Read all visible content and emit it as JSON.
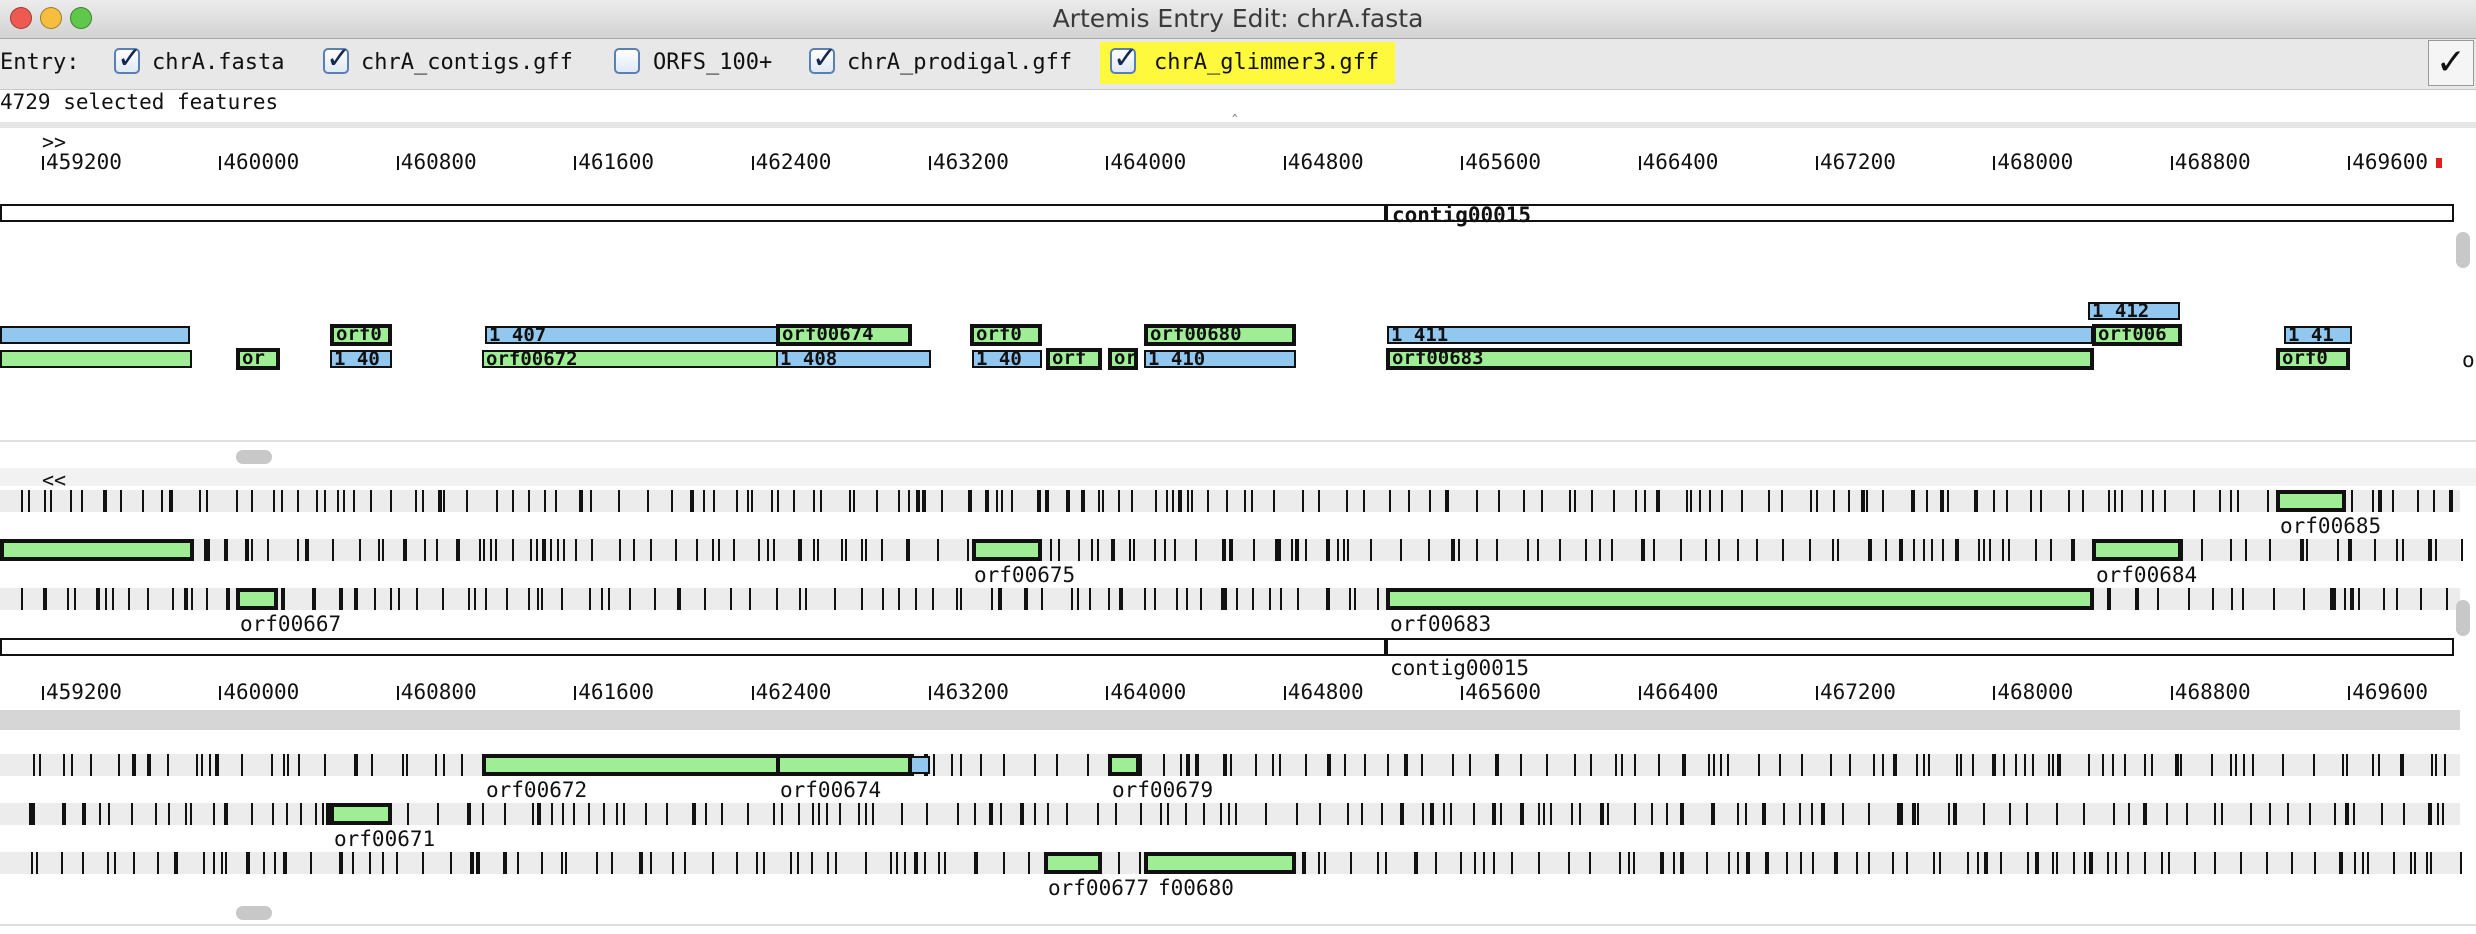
{
  "window": {
    "title": "Artemis Entry Edit: chrA.fasta"
  },
  "entry_bar": {
    "label": "Entry:",
    "entries": [
      {
        "name": "chrA.fasta",
        "checked": true
      },
      {
        "name": "chrA_contigs.gff",
        "checked": true
      },
      {
        "name": "ORFS_100+",
        "checked": false
      },
      {
        "name": "chrA_prodigal.gff",
        "checked": true
      },
      {
        "name": "chrA_glimmer3.gff",
        "checked": true,
        "highlighted": true
      }
    ],
    "ok_label": "✓"
  },
  "status": {
    "selected": "4729 selected features"
  },
  "feature_view": {
    "scroll_right": ">>",
    "ruler": [
      "459200",
      "460000",
      "460800",
      "461600",
      "462400",
      "463200",
      "464000",
      "464800",
      "465600",
      "466400",
      "467200",
      "468000",
      "468800",
      "469600"
    ],
    "contig_label": "contig00015",
    "features": [
      "orf0",
      "1 407",
      "orf00674",
      "orf0",
      "orf00680",
      "1 411",
      "1 412",
      "orf006",
      "1 41",
      "or",
      "1 40",
      "orf00672",
      "1 408",
      "1 40",
      "orf",
      "or",
      "1 410",
      "orf00683",
      "orf0"
    ],
    "edge_char": "o"
  },
  "base_view": {
    "scroll_left": "<<",
    "ruler": [
      "459200",
      "460000",
      "460800",
      "461600",
      "462400",
      "463200",
      "464000",
      "464800",
      "465600",
      "466400",
      "467200",
      "468000",
      "468800",
      "469600"
    ],
    "contig_label": "contig00015",
    "feature_labels": [
      "orf00685",
      "orf00675",
      "orf00684",
      "orf00667",
      "orf00683",
      "orf00672",
      "orf00674",
      "orf00679",
      "orf00671",
      "orf00677",
      "f00680"
    ]
  }
}
